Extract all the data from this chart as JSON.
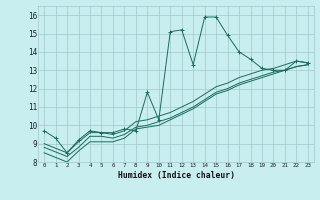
{
  "xlabel": "Humidex (Indice chaleur)",
  "background_color": "#c8eef0",
  "grid_color": "#a0c8cc",
  "line_color": "#1a6b5a",
  "xlim": [
    -0.5,
    23.5
  ],
  "ylim": [
    8.0,
    16.5
  ],
  "yticks": [
    8,
    9,
    10,
    11,
    12,
    13,
    14,
    15,
    16
  ],
  "xticks": [
    0,
    1,
    2,
    3,
    4,
    5,
    6,
    7,
    8,
    9,
    10,
    11,
    12,
    13,
    14,
    15,
    16,
    17,
    18,
    19,
    20,
    21,
    22,
    23
  ],
  "curve1_x": [
    0,
    1,
    2,
    3,
    4,
    5,
    6,
    7,
    8,
    9,
    10,
    11,
    12,
    13,
    14,
    15,
    16,
    17,
    18,
    19,
    20,
    21,
    22,
    23
  ],
  "curve1_y": [
    9.7,
    9.3,
    8.5,
    9.2,
    9.7,
    9.6,
    9.6,
    9.8,
    9.7,
    11.8,
    10.3,
    15.1,
    15.2,
    13.3,
    15.9,
    15.9,
    14.9,
    14.0,
    13.6,
    13.1,
    13.0,
    13.0,
    13.5,
    13.4
  ],
  "curve2_x": [
    0,
    2,
    3,
    4,
    5,
    6,
    7,
    8,
    9,
    10,
    11,
    12,
    13,
    14,
    15,
    16,
    17,
    18,
    19,
    20,
    21,
    22,
    23
  ],
  "curve2_y": [
    9.0,
    8.5,
    9.1,
    9.6,
    9.6,
    9.5,
    9.7,
    10.2,
    10.3,
    10.5,
    10.7,
    11.0,
    11.3,
    11.7,
    12.1,
    12.3,
    12.6,
    12.8,
    13.0,
    13.1,
    13.3,
    13.5,
    13.4
  ],
  "curve3_x": [
    0,
    2,
    3,
    4,
    5,
    6,
    7,
    8,
    9,
    10,
    11,
    12,
    13,
    14,
    15,
    16,
    17,
    18,
    19,
    20,
    21,
    22,
    23
  ],
  "curve3_y": [
    8.8,
    8.3,
    8.8,
    9.4,
    9.4,
    9.3,
    9.5,
    9.9,
    10.0,
    10.2,
    10.4,
    10.7,
    11.0,
    11.4,
    11.8,
    12.0,
    12.3,
    12.5,
    12.7,
    12.9,
    13.0,
    13.2,
    13.3
  ],
  "curve4_x": [
    0,
    2,
    3,
    4,
    5,
    6,
    7,
    8,
    9,
    10,
    11,
    12,
    13,
    14,
    15,
    16,
    17,
    18,
    19,
    20,
    21,
    22,
    23
  ],
  "curve4_y": [
    8.5,
    8.0,
    8.6,
    9.1,
    9.1,
    9.1,
    9.3,
    9.8,
    9.9,
    10.0,
    10.3,
    10.6,
    10.9,
    11.3,
    11.7,
    11.9,
    12.2,
    12.4,
    12.6,
    12.8,
    13.0,
    13.2,
    13.3
  ]
}
